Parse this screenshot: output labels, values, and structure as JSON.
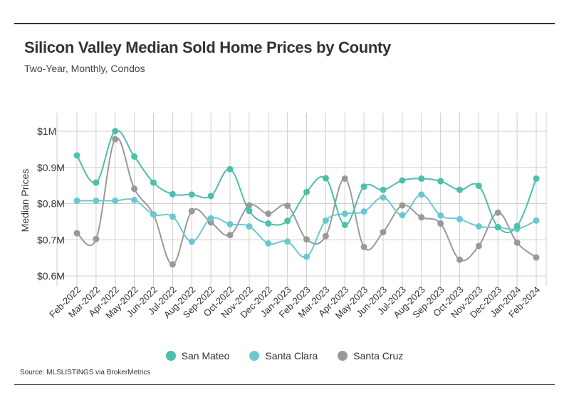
{
  "title": "Silicon Valley Median Sold Home Prices by County",
  "subtitle": "Two-Year, Monthly, Condos",
  "source": "Source:  MLSLISTINGS via BrokerMetrics",
  "chart_data": {
    "type": "line",
    "ylabel": "Median Prices",
    "xlabel": "",
    "ylim": [
      0.6,
      1.0
    ],
    "yticks": [
      1.0,
      0.9,
      0.8,
      0.7,
      0.6
    ],
    "ytick_labels": [
      "$1M",
      "$0.9M",
      "$0.8M",
      "$0.7M",
      "$0.6M"
    ],
    "grid": true,
    "legend_position": "bottom",
    "categories": [
      "Feb-2022",
      "Mar-2022",
      "Apr-2022",
      "May-2022",
      "Jun-2022",
      "Jul-2022",
      "Aug-2022",
      "Sep-2022",
      "Oct-2022",
      "Nov-2022",
      "Dec-2022",
      "Jan-2023",
      "Feb-2023",
      "Mar-2023",
      "Apr-2023",
      "May-2023",
      "Jun-2023",
      "Jul-2023",
      "Aug-2023",
      "Sep-2023",
      "Oct-2023",
      "Nov-2023",
      "Dec-2023",
      "Jan-2024",
      "Feb-2024"
    ],
    "series": [
      {
        "name": "San Mateo",
        "color": "#4dbfaa",
        "values": [
          0.933,
          0.858,
          1.0,
          0.93,
          0.858,
          0.826,
          0.825,
          0.821,
          0.895,
          0.78,
          0.745,
          0.752,
          0.832,
          0.87,
          0.741,
          0.847,
          0.838,
          0.864,
          0.869,
          0.862,
          0.838,
          0.849,
          0.735,
          0.738,
          0.869
        ]
      },
      {
        "name": "Santa Clara",
        "color": "#6cc8cf",
        "values": [
          0.808,
          0.808,
          0.808,
          0.81,
          0.77,
          0.764,
          0.695,
          0.759,
          0.743,
          0.737,
          0.69,
          0.695,
          0.653,
          0.753,
          0.772,
          0.778,
          0.817,
          0.768,
          0.825,
          0.767,
          0.757,
          0.737,
          0.734,
          0.73,
          0.753
        ]
      },
      {
        "name": "Santa Cruz",
        "color": "#999999",
        "values": [
          0.718,
          0.702,
          0.978,
          0.841,
          0.77,
          0.632,
          0.779,
          0.748,
          0.713,
          0.795,
          0.772,
          0.794,
          0.701,
          0.71,
          0.869,
          0.68,
          0.721,
          0.795,
          0.762,
          0.745,
          0.645,
          0.683,
          0.775,
          0.692,
          0.651
        ]
      }
    ]
  }
}
